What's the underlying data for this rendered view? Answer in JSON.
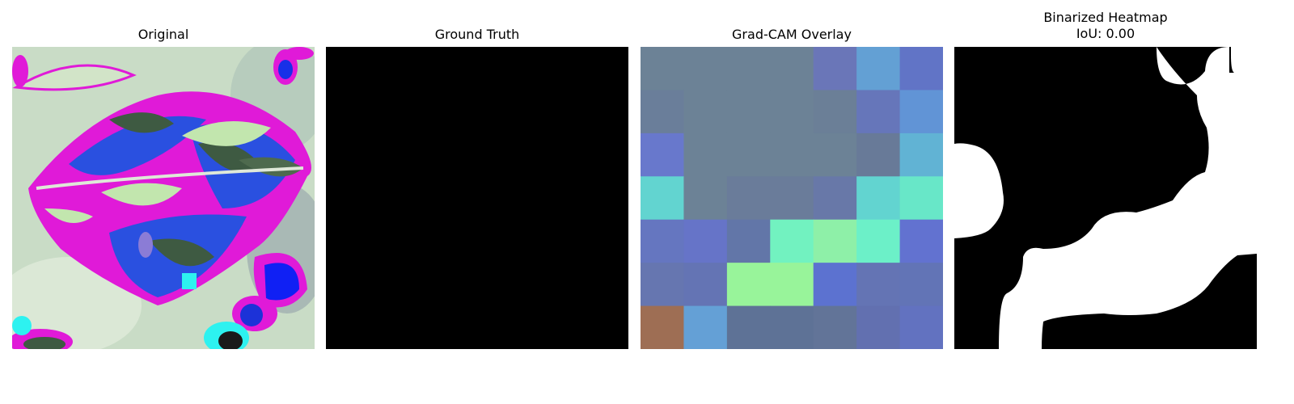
{
  "panels": [
    {
      "title": "Original"
    },
    {
      "title": "Ground Truth"
    },
    {
      "title": "Grad-CAM Overlay"
    },
    {
      "title_line1": "Binarized Heatmap",
      "title_line2": "IoU: 0.00"
    }
  ],
  "gradcam_grid": [
    [
      "#6c8296",
      "#6c8296",
      "#6c8296",
      "#6c8296",
      "#6a76b8",
      "#63a0d4",
      "#6174c6"
    ],
    [
      "#6a7e9a",
      "#6c8296",
      "#6c8296",
      "#6c8296",
      "#6b7f97",
      "#6676ba",
      "#6194d6"
    ],
    [
      "#6878cc",
      "#6c8296",
      "#6c8296",
      "#6c8296",
      "#6c8296",
      "#687a98",
      "#61b3d4"
    ],
    [
      "#62d4d0",
      "#6c8296",
      "#6a7c9a",
      "#6a7c9a",
      "#6878a8",
      "#62d4d0",
      "#68e7c8"
    ],
    [
      "#6576c0",
      "#6674c8",
      "#6276a8",
      "#72f2c0",
      "#8ef0a8",
      "#6cf0c8",
      "#6272d0"
    ],
    [
      "#6676b0",
      "#6474b4",
      "#98f49a",
      "#98f49a",
      "#5c72d0",
      "#6474b4",
      "#6274b6"
    ],
    [
      "#9e6e54",
      "#64a0d6",
      "#5e7296",
      "#5e7296",
      "#627498",
      "#6270b0",
      "#6272c0"
    ]
  ]
}
